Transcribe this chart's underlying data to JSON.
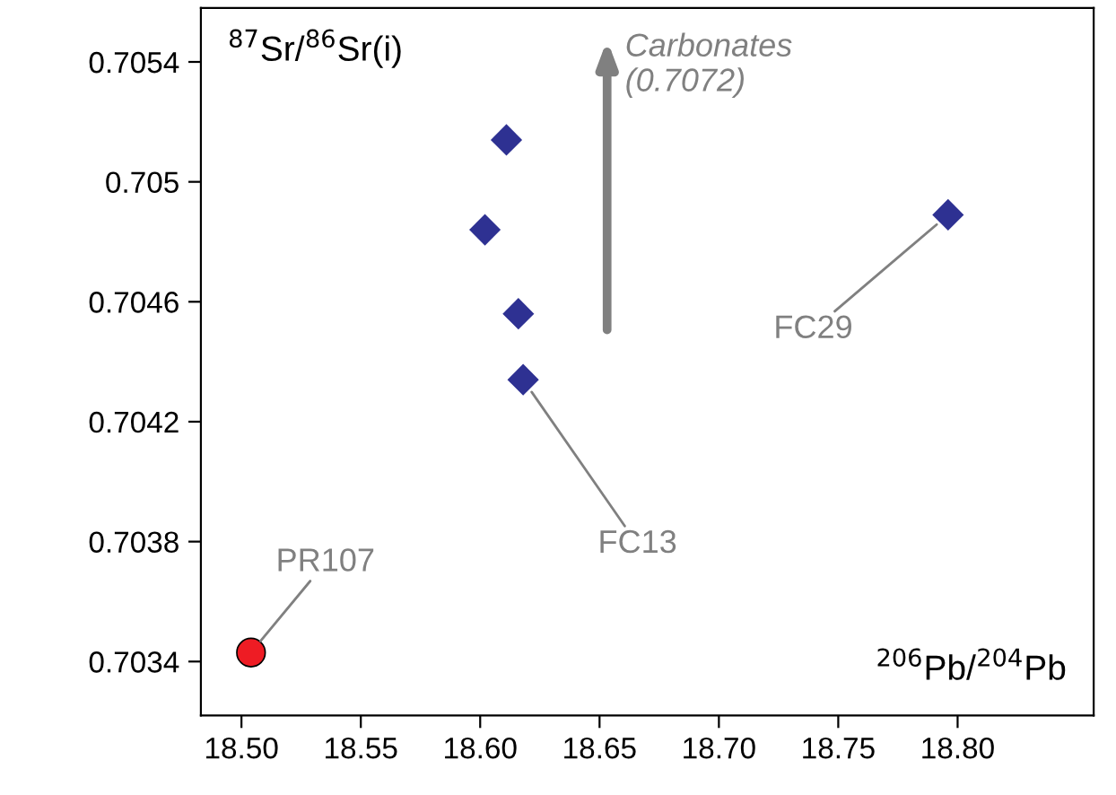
{
  "chart_data": {
    "type": "scatter",
    "xlabel": "$^{206}$Pb/$^{204}$Pb",
    "ylabel": "$^{87}$Sr/$^{86}$Sr(i)",
    "xlim": [
      18.483,
      18.857
    ],
    "ylim": [
      0.70322,
      0.70558
    ],
    "xticks": [
      {
        "value": 18.5,
        "label": "18.50"
      },
      {
        "value": 18.55,
        "label": "18.55"
      },
      {
        "value": 18.6,
        "label": "18.60"
      },
      {
        "value": 18.65,
        "label": "18.65"
      },
      {
        "value": 18.7,
        "label": "18.70"
      },
      {
        "value": 18.75,
        "label": "18.75"
      },
      {
        "value": 18.8,
        "label": "18.80"
      }
    ],
    "yticks": [
      0.7034,
      0.7038,
      0.7042,
      0.7046,
      0.705,
      0.7054
    ],
    "grid": false,
    "series": [
      {
        "marker": "diamond",
        "color": "#2e3192",
        "x": [
          18.611,
          18.602,
          18.616,
          18.618,
          18.796
        ],
        "values": [
          0.70514,
          0.70484,
          0.70456,
          0.70434,
          0.70489
        ]
      },
      {
        "marker": "circle",
        "color": "#ee1c24",
        "x": [
          18.504
        ],
        "values": [
          0.70343
        ]
      }
    ],
    "annotations": [
      "Carbonates\n(0.7072)",
      {
        "text": "FC13",
        "x": 18.618,
        "y": 0.70434
      },
      {
        "text": "FC29",
        "x": 18.796,
        "y": 0.70489
      },
      {
        "text": "PR107",
        "x": 18.504,
        "y": 0.70343
      }
    ]
  }
}
